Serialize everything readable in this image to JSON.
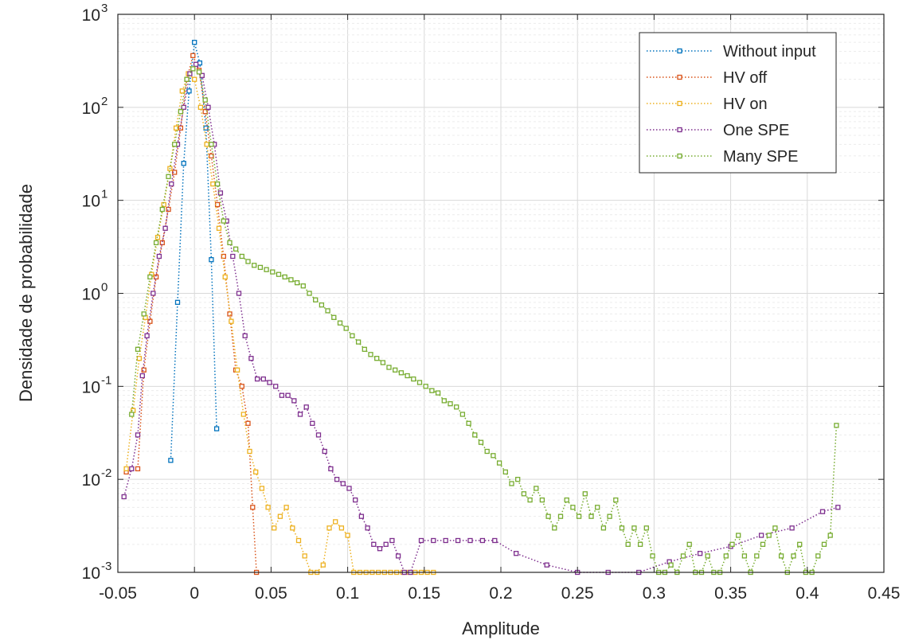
{
  "chart_data": {
    "type": "line",
    "title": "",
    "xlabel": "Amplitude",
    "ylabel": "Densidade de probabilidade",
    "xlim": [
      -0.05,
      0.45
    ],
    "ylim": [
      0.001,
      1000
    ],
    "yscale": "log",
    "grid": "major and minor",
    "legend_position": "top-right",
    "x_ticks": [
      -0.05,
      0,
      0.05,
      0.1,
      0.15,
      0.2,
      0.25,
      0.3,
      0.35,
      0.4,
      0.45
    ],
    "x_tick_labels": [
      "-0.05",
      "0",
      "0.05",
      "0.1",
      "0.15",
      "0.2",
      "0.25",
      "0.3",
      "0.35",
      "0.4",
      "0.45"
    ],
    "y_ticks": [
      {
        "value": 0.001,
        "base": "10",
        "exp": "-3"
      },
      {
        "value": 0.01,
        "base": "10",
        "exp": "-2"
      },
      {
        "value": 0.1,
        "base": "10",
        "exp": "-1"
      },
      {
        "value": 1,
        "base": "10",
        "exp": "0"
      },
      {
        "value": 10,
        "base": "10",
        "exp": "1"
      },
      {
        "value": 100,
        "base": "10",
        "exp": "2"
      },
      {
        "value": 1000,
        "base": "10",
        "exp": "3"
      }
    ],
    "series": [
      {
        "name": "Without input",
        "color": "#0072BD",
        "x": [
          -0.0155,
          -0.011,
          -0.007,
          -0.0035,
          0.0,
          0.0035,
          0.0075,
          0.011,
          0.0145
        ],
        "y": [
          0.016,
          0.8,
          25,
          150,
          500,
          300,
          60,
          2.3,
          0.035
        ]
      },
      {
        "name": "HV off",
        "color": "#D95319",
        "x": [
          -0.0445,
          -0.037,
          -0.033,
          -0.029,
          -0.025,
          -0.021,
          -0.017,
          -0.013,
          -0.009,
          -0.005,
          -0.001,
          0.003,
          0.007,
          0.011,
          0.015,
          0.019,
          0.023,
          0.027,
          0.031,
          0.035,
          0.038,
          0.0405
        ],
        "y": [
          0.012,
          0.013,
          0.15,
          0.5,
          1.5,
          3.5,
          8,
          20,
          60,
          200,
          360,
          250,
          90,
          30,
          9,
          2.5,
          0.6,
          0.15,
          0.1,
          0.04,
          0.005,
          0.001
        ]
      },
      {
        "name": "HV on",
        "color": "#EDB120",
        "x": [
          -0.0445,
          -0.04,
          -0.036,
          -0.032,
          -0.028,
          -0.024,
          -0.02,
          -0.016,
          -0.012,
          -0.008,
          -0.004,
          0.0,
          0.004,
          0.008,
          0.012,
          0.016,
          0.02,
          0.024,
          0.028,
          0.032,
          0.036,
          0.04,
          0.044,
          0.048,
          0.052,
          0.056,
          0.06,
          0.064,
          0.068,
          0.072,
          0.076,
          0.08,
          0.084,
          0.088,
          0.092,
          0.096,
          0.1,
          0.104,
          0.108,
          0.112,
          0.116,
          0.12,
          0.124,
          0.128,
          0.132,
          0.136,
          0.14,
          0.144,
          0.148,
          0.152,
          0.156
        ],
        "y": [
          0.013,
          0.055,
          0.2,
          0.55,
          1.6,
          4,
          9,
          22,
          60,
          150,
          230,
          200,
          100,
          40,
          15,
          5,
          1.5,
          0.5,
          0.15,
          0.05,
          0.02,
          0.012,
          0.008,
          0.005,
          0.003,
          0.004,
          0.005,
          0.003,
          0.0022,
          0.0015,
          0.001,
          0.001,
          0.0012,
          0.003,
          0.0035,
          0.003,
          0.0025,
          0.001,
          0.001,
          0.001,
          0.001,
          0.001,
          0.001,
          0.001,
          0.001,
          0.001,
          0.001,
          0.001,
          0.001,
          0.001,
          0.001
        ]
      },
      {
        "name": "One SPE",
        "color": "#7E2F8E",
        "x": [
          -0.046,
          -0.041,
          -0.037,
          -0.034,
          -0.031,
          -0.027,
          -0.023,
          -0.019,
          -0.015,
          -0.011,
          -0.007,
          -0.003,
          0.001,
          0.005,
          0.009,
          0.013,
          0.017,
          0.021,
          0.025,
          0.029,
          0.033,
          0.037,
          0.041,
          0.045,
          0.049,
          0.053,
          0.057,
          0.061,
          0.065,
          0.069,
          0.073,
          0.077,
          0.081,
          0.085,
          0.089,
          0.093,
          0.097,
          0.101,
          0.105,
          0.109,
          0.113,
          0.117,
          0.121,
          0.125,
          0.129,
          0.133,
          0.137,
          0.141,
          0.148,
          0.156,
          0.164,
          0.172,
          0.18,
          0.188,
          0.196,
          0.21,
          0.23,
          0.25,
          0.27,
          0.29,
          0.31,
          0.33,
          0.35,
          0.37,
          0.39,
          0.41,
          0.42
        ],
        "y": [
          0.0065,
          0.013,
          0.03,
          0.13,
          0.35,
          1,
          2.5,
          5,
          15,
          40,
          100,
          230,
          290,
          220,
          100,
          40,
          12,
          6,
          2.5,
          1.0,
          0.35,
          0.2,
          0.12,
          0.12,
          0.11,
          0.1,
          0.08,
          0.08,
          0.07,
          0.05,
          0.06,
          0.04,
          0.03,
          0.02,
          0.013,
          0.01,
          0.009,
          0.008,
          0.006,
          0.004,
          0.003,
          0.002,
          0.0018,
          0.002,
          0.0022,
          0.0015,
          0.001,
          0.001,
          0.0022,
          0.0022,
          0.0022,
          0.0022,
          0.0022,
          0.0022,
          0.0022,
          0.0016,
          0.0012,
          0.001,
          0.001,
          0.001,
          0.0013,
          0.0016,
          0.0019,
          0.0025,
          0.003,
          0.0045,
          0.005
        ]
      },
      {
        "name": "Many SPE",
        "color": "#77AC30",
        "x": [
          -0.041,
          -0.037,
          -0.033,
          -0.029,
          -0.025,
          -0.021,
          -0.017,
          -0.013,
          -0.009,
          -0.005,
          -0.001,
          0.003,
          0.007,
          0.011,
          0.015,
          0.019,
          0.023,
          0.027,
          0.031,
          0.035,
          0.039,
          0.043,
          0.047,
          0.051,
          0.055,
          0.059,
          0.063,
          0.067,
          0.071,
          0.075,
          0.079,
          0.083,
          0.087,
          0.091,
          0.095,
          0.099,
          0.103,
          0.107,
          0.111,
          0.115,
          0.119,
          0.123,
          0.127,
          0.131,
          0.135,
          0.139,
          0.143,
          0.147,
          0.151,
          0.155,
          0.159,
          0.163,
          0.167,
          0.171,
          0.175,
          0.179,
          0.183,
          0.187,
          0.191,
          0.195,
          0.199,
          0.203,
          0.207,
          0.211,
          0.215,
          0.219,
          0.223,
          0.227,
          0.231,
          0.235,
          0.239,
          0.243,
          0.247,
          0.251,
          0.255,
          0.259,
          0.263,
          0.267,
          0.271,
          0.275,
          0.279,
          0.283,
          0.287,
          0.291,
          0.295,
          0.299,
          0.303,
          0.307,
          0.311,
          0.315,
          0.319,
          0.323,
          0.327,
          0.331,
          0.335,
          0.339,
          0.343,
          0.347,
          0.351,
          0.355,
          0.359,
          0.363,
          0.367,
          0.371,
          0.375,
          0.379,
          0.383,
          0.387,
          0.391,
          0.395,
          0.399,
          0.403,
          0.407,
          0.411,
          0.415,
          0.419
        ],
        "y": [
          0.05,
          0.25,
          0.6,
          1.5,
          3.5,
          8,
          18,
          40,
          90,
          200,
          260,
          240,
          120,
          40,
          15,
          6,
          3.5,
          3,
          2.5,
          2.2,
          2,
          1.9,
          1.8,
          1.7,
          1.6,
          1.5,
          1.4,
          1.3,
          1.2,
          1.0,
          0.85,
          0.75,
          0.65,
          0.55,
          0.48,
          0.42,
          0.35,
          0.3,
          0.25,
          0.22,
          0.2,
          0.18,
          0.16,
          0.15,
          0.14,
          0.13,
          0.12,
          0.11,
          0.1,
          0.09,
          0.085,
          0.07,
          0.065,
          0.06,
          0.05,
          0.04,
          0.03,
          0.025,
          0.02,
          0.018,
          0.015,
          0.012,
          0.009,
          0.01,
          0.007,
          0.006,
          0.008,
          0.006,
          0.004,
          0.003,
          0.004,
          0.006,
          0.005,
          0.004,
          0.007,
          0.004,
          0.005,
          0.003,
          0.004,
          0.006,
          0.003,
          0.002,
          0.003,
          0.002,
          0.003,
          0.0015,
          0.001,
          0.001,
          0.0012,
          0.001,
          0.0015,
          0.002,
          0.001,
          0.001,
          0.0015,
          0.001,
          0.001,
          0.0015,
          0.002,
          0.0025,
          0.0015,
          0.001,
          0.0015,
          0.002,
          0.0025,
          0.003,
          0.0015,
          0.001,
          0.0015,
          0.002,
          0.001,
          0.001,
          0.0015,
          0.002,
          0.0025,
          0.038
        ]
      }
    ]
  }
}
